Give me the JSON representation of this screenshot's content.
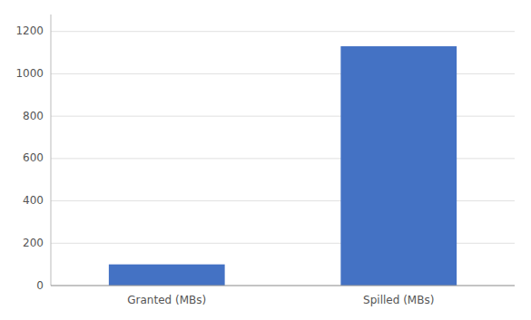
{
  "chart_data": {
    "type": "bar",
    "categories": [
      "Granted (MBs)",
      "Spilled (MBs)"
    ],
    "values": [
      100,
      1130
    ],
    "color": "#4472C4",
    "ylim": [
      0,
      1280
    ],
    "yticks": [
      0,
      200,
      400,
      600,
      800,
      1000,
      1200
    ],
    "grid": true
  }
}
